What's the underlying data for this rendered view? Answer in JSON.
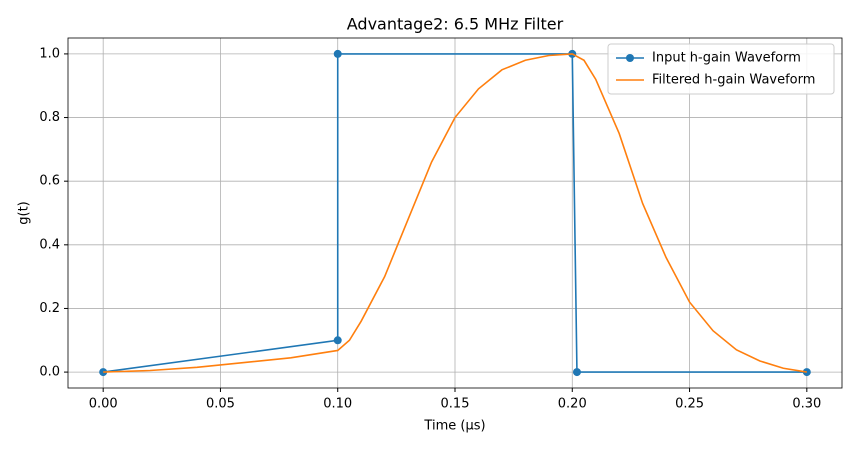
{
  "chart_data": {
    "type": "line",
    "title": "Advantage2: 6.5 MHz Filter",
    "x_label": "Time (μs)",
    "y_label": "g(t)",
    "xlim": [
      -0.015,
      0.315
    ],
    "ylim": [
      -0.05,
      1.05
    ],
    "xticks": [
      {
        "value": 0,
        "label": "0.00"
      },
      {
        "value": 0.05,
        "label": "0.05"
      },
      {
        "value": 0.1,
        "label": "0.10"
      },
      {
        "value": 0.15,
        "label": "0.15"
      },
      {
        "value": 0.2,
        "label": "0.20"
      },
      {
        "value": 0.25,
        "label": "0.25"
      },
      {
        "value": 0.3,
        "label": "0.30"
      }
    ],
    "yticks": [
      {
        "value": 0,
        "label": "0.0"
      },
      {
        "value": 0.2,
        "label": "0.2"
      },
      {
        "value": 0.4,
        "label": "0.4"
      },
      {
        "value": 0.6,
        "label": "0.6"
      },
      {
        "value": 0.8,
        "label": "0.8"
      },
      {
        "value": 1,
        "label": "1.0"
      }
    ],
    "grid": true,
    "legend": "upper right",
    "series": [
      {
        "name": "Input h-gain Waveform",
        "color": "#1f77b4",
        "marker": "o",
        "x": [
          0,
          0.1,
          0.1,
          0.2,
          0.202,
          0.3
        ],
        "values": [
          0,
          0.1,
          1,
          1,
          0,
          0
        ]
      },
      {
        "name": "Filtered h-gain Waveform",
        "color": "#ff7f0e",
        "x": [
          0,
          0.02,
          0.04,
          0.06,
          0.08,
          0.1,
          0.105,
          0.11,
          0.12,
          0.13,
          0.14,
          0.15,
          0.16,
          0.17,
          0.18,
          0.19,
          0.2,
          0.205,
          0.21,
          0.22,
          0.23,
          0.24,
          0.25,
          0.26,
          0.27,
          0.28,
          0.29,
          0.3
        ],
        "values": [
          0,
          0.005,
          0.015,
          0.03,
          0.045,
          0.068,
          0.1,
          0.16,
          0.3,
          0.48,
          0.66,
          0.8,
          0.89,
          0.95,
          0.98,
          0.995,
          1.0,
          0.98,
          0.92,
          0.75,
          0.53,
          0.36,
          0.22,
          0.13,
          0.07,
          0.035,
          0.012,
          0
        ]
      }
    ]
  }
}
